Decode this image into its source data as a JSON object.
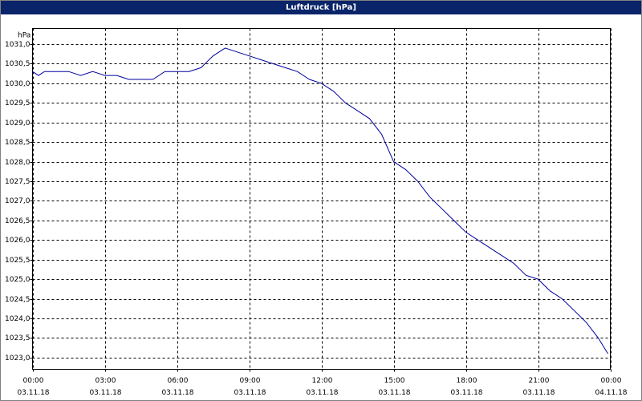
{
  "chart_data": {
    "type": "line",
    "title": "Luftdruck [hPa]",
    "y_unit": "hPa",
    "x": [
      0,
      0.25,
      0.5,
      1,
      1.5,
      2,
      2.5,
      3,
      3.5,
      4,
      4.5,
      5,
      5.5,
      6,
      6.5,
      7,
      7.5,
      8,
      8.5,
      9,
      9.5,
      10,
      10.5,
      11,
      11.5,
      12,
      12.5,
      13,
      13.5,
      14,
      14.5,
      15,
      15.5,
      16,
      16.5,
      17,
      17.5,
      18,
      18.5,
      19,
      19.5,
      20,
      20.5,
      21,
      21.5,
      22,
      22.5,
      23,
      23.5,
      23.9
    ],
    "series": [
      {
        "name": "Luftdruck",
        "color": "#0000a0",
        "values": [
          1030.3,
          1030.2,
          1030.3,
          1030.3,
          1030.3,
          1030.2,
          1030.3,
          1030.2,
          1030.2,
          1030.1,
          1030.1,
          1030.1,
          1030.3,
          1030.3,
          1030.3,
          1030.4,
          1030.7,
          1030.9,
          1030.8,
          1030.7,
          1030.6,
          1030.5,
          1030.4,
          1030.3,
          1030.1,
          1030.0,
          1029.8,
          1029.5,
          1029.3,
          1029.1,
          1028.7,
          1028.0,
          1027.8,
          1027.5,
          1027.1,
          1026.8,
          1026.5,
          1026.2,
          1026.0,
          1025.8,
          1025.6,
          1025.4,
          1025.1,
          1025.0,
          1024.7,
          1024.5,
          1024.2,
          1023.9,
          1023.5,
          1023.1
        ]
      }
    ],
    "xlim": [
      0,
      24
    ],
    "xticks": [
      {
        "value": 0,
        "label": "00:00",
        "date": "03.11.18"
      },
      {
        "value": 3,
        "label": "03:00",
        "date": "03.11.18"
      },
      {
        "value": 6,
        "label": "06:00",
        "date": "03.11.18"
      },
      {
        "value": 9,
        "label": "09:00",
        "date": "03.11.18"
      },
      {
        "value": 12,
        "label": "12:00",
        "date": "03.11.18"
      },
      {
        "value": 15,
        "label": "15:00",
        "date": "03.11.18"
      },
      {
        "value": 18,
        "label": "18:00",
        "date": "03.11.18"
      },
      {
        "value": 21,
        "label": "21:00",
        "date": "03.11.18"
      },
      {
        "value": 24,
        "label": "00:00",
        "date": "04.11.18"
      }
    ],
    "ylim": [
      1022.7,
      1031.4
    ],
    "yticks": [
      {
        "value": 1023,
        "label": "1023,0"
      },
      {
        "value": 1023.5,
        "label": "1023,5"
      },
      {
        "value": 1024,
        "label": "1024,0"
      },
      {
        "value": 1024.5,
        "label": "1024,5"
      },
      {
        "value": 1025,
        "label": "1025,0"
      },
      {
        "value": 1025.5,
        "label": "1025,5"
      },
      {
        "value": 1026,
        "label": "1026,0"
      },
      {
        "value": 1026.5,
        "label": "1026,5"
      },
      {
        "value": 1027,
        "label": "1027,0"
      },
      {
        "value": 1027.5,
        "label": "1027,5"
      },
      {
        "value": 1028,
        "label": "1028,0"
      },
      {
        "value": 1028.5,
        "label": "1028,5"
      },
      {
        "value": 1029,
        "label": "1029,0"
      },
      {
        "value": 1029.5,
        "label": "1029,5"
      },
      {
        "value": 1030,
        "label": "1030,0"
      },
      {
        "value": 1030.5,
        "label": "1030,5"
      },
      {
        "value": 1031,
        "label": "1031,0"
      }
    ],
    "grid": true
  }
}
